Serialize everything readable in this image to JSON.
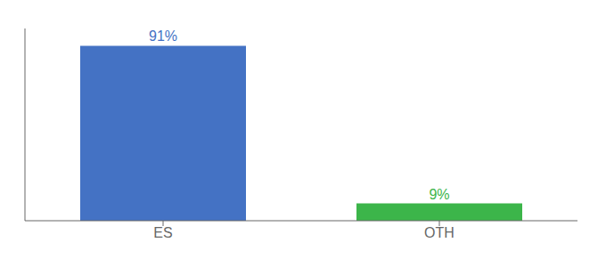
{
  "chart_data": {
    "type": "bar",
    "categories": [
      "ES",
      "OTH"
    ],
    "values": [
      91,
      9
    ],
    "value_labels": [
      "91%",
      "9%"
    ],
    "colors": [
      "#4472c4",
      "#3cb54a"
    ],
    "ylim": [
      0,
      100
    ],
    "data_labels": true,
    "tick_labels": "x"
  }
}
